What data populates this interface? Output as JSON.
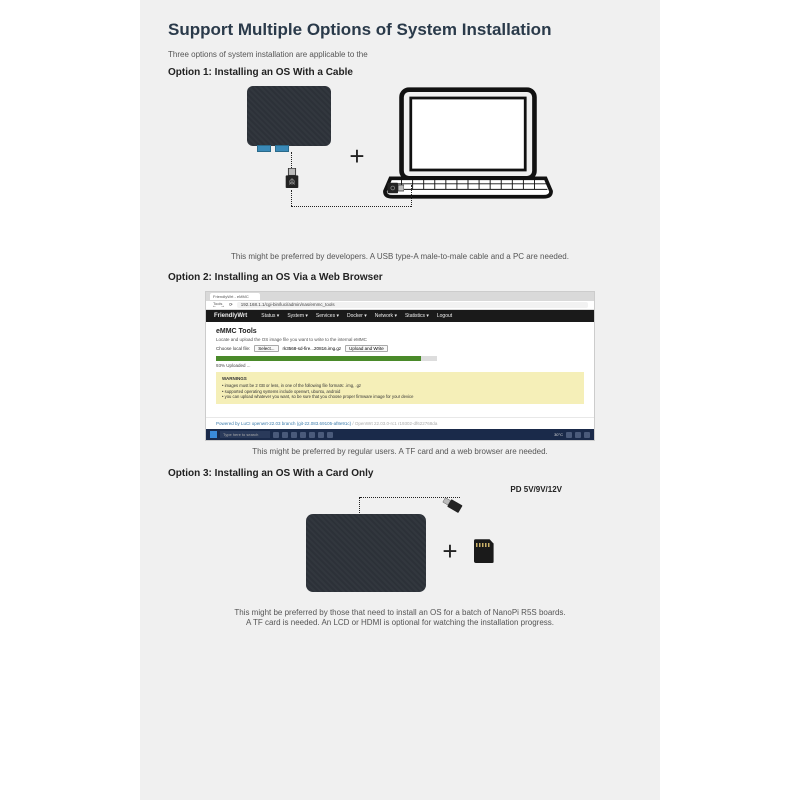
{
  "title": "Support Multiple Options of System Installation",
  "intro": "Three options of system installation are applicable to the",
  "option1": {
    "title": "Option 1: Installing an OS With a Cable",
    "caption": "This might be preferred by developers. A USB type-A male-to-male cable and a PC are needed."
  },
  "option2": {
    "title": "Option 2: Installing an OS Via a Web Browser",
    "caption": "This might be preferred by regular users. A TF card and a web browser are needed.",
    "tab_label": "FriendlyWrt - eMMC Tools",
    "url": "192.168.1.1/cgi-bin/luci/admin/nas/emmc_tools",
    "brand": "FriendlyWrt",
    "nav": [
      "Status ▾",
      "System ▾",
      "Services ▾",
      "Docker ▾",
      "Network ▾",
      "Statistics ▾",
      "Logout"
    ],
    "heading": "eMMC Tools",
    "sub": "Locate and upload the OS image file you want to write to the internal eMMC",
    "file_label": "Choose local file:",
    "file_btn": "Select...",
    "file_name": "rk3568-sd-fire...20816.img.gz",
    "upload_btn": "Upload and Write",
    "progress_pct": 93,
    "progress_label": "93% Uploaded ...",
    "warn_title": "WARNINGS",
    "warn_lines": [
      "• images must be 2 GB or less, in one of the following file formats: .img, .gz",
      "• supported operating systems include openwrt, ubuntu, android",
      "• you can upload whatever you want, so be sure that you choose proper firmware image for your device"
    ],
    "footer_luci": "Powered by LuCI openwrt-22.03 branch (git-22.083.69105-af8e91c)",
    "footer_openwrt": " / OpenWrt 22.03.0-rc1 r19302-df622768da",
    "taskbar_search": "Type here to search",
    "taskbar_temp": "30°C"
  },
  "option3": {
    "title": "Option 3: Installing an OS With a Card Only",
    "pd_label": "PD 5V/9V/12V",
    "caption": "This might be preferred by those that need to install an OS for a batch of NanoPi R5S boards.\nA TF card is needed. An LCD or HDMI is optional for watching the installation progress."
  },
  "colors": {
    "title": "#2a3a4a",
    "bg": "#f0f0f0",
    "device": "#2c3138",
    "port": "#3a8ab8",
    "progress": "#4a8a2a",
    "warn_bg": "#f5efb8",
    "nav_bg": "#1a1a1a",
    "taskbar_bg": "#1a2a4a"
  }
}
